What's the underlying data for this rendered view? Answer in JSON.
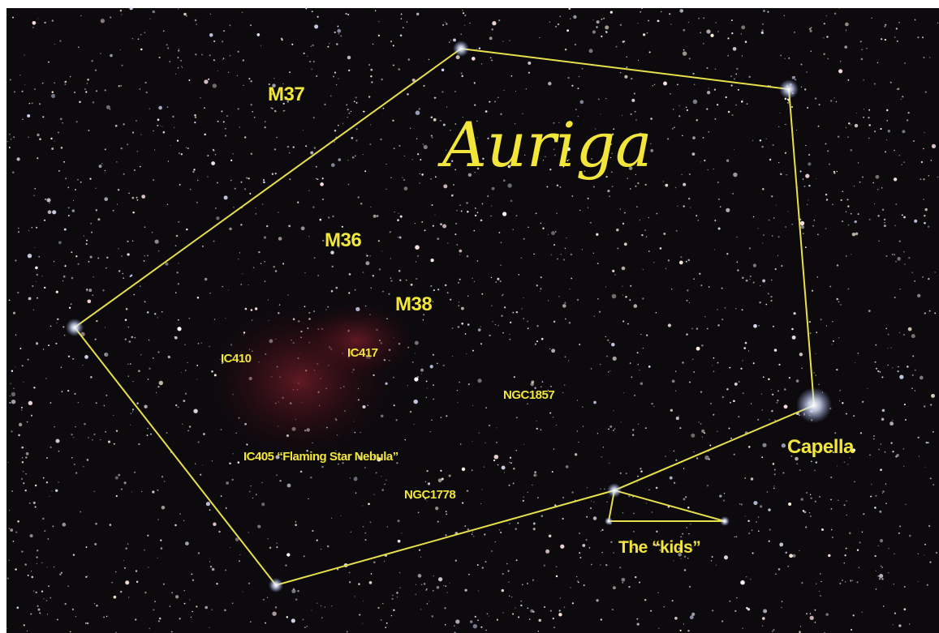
{
  "image": {
    "title": "Auriga",
    "objects": [
      "M37",
      "M36",
      "M38",
      "IC410",
      "IC417",
      "NGC1857",
      "IC405 “Flaming Star Nebula”",
      "NGC1778"
    ],
    "stars": [
      "Capella",
      "The “kids”"
    ]
  }
}
